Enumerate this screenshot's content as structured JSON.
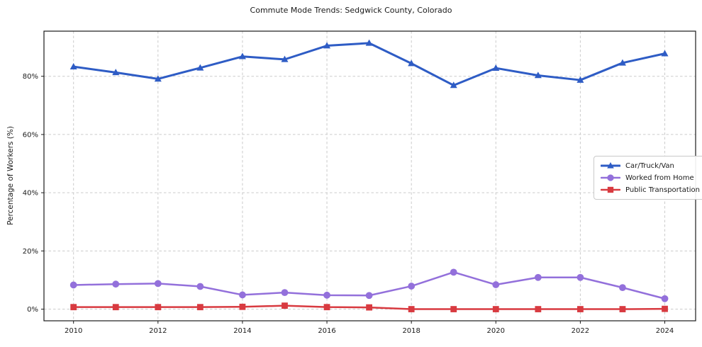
{
  "chart_data": {
    "type": "line",
    "title": "Commute Mode Trends: Sedgwick County, Colorado",
    "ylabel": "Percentage of Workers (%)",
    "xlabel": "",
    "x": [
      2010,
      2011,
      2012,
      2013,
      2014,
      2015,
      2016,
      2017,
      2018,
      2019,
      2020,
      2021,
      2022,
      2023,
      2024
    ],
    "series": [
      {
        "name": "Car/Truck/Van",
        "marker": "triangle",
        "color": "#2e5cc5",
        "line_width": 3,
        "values": [
          83.3,
          81.3,
          79.1,
          82.9,
          86.8,
          85.8,
          90.5,
          91.4,
          84.4,
          76.9,
          82.8,
          80.3,
          78.7,
          84.6,
          87.8
        ]
      },
      {
        "name": "Worked from Home",
        "marker": "circle",
        "color": "#9370db",
        "line_width": 2.5,
        "values": [
          8.3,
          8.6,
          8.8,
          7.8,
          4.9,
          5.7,
          4.8,
          4.7,
          7.9,
          12.7,
          8.4,
          10.9,
          10.9,
          7.4,
          3.6
        ]
      },
      {
        "name": "Public Transportation",
        "marker": "square",
        "color": "#d83a40",
        "line_width": 2.5,
        "values": [
          0.7,
          0.7,
          0.7,
          0.7,
          0.8,
          1.2,
          0.7,
          0.6,
          0.0,
          0.0,
          0.0,
          0.0,
          0.0,
          0.0,
          0.1
        ]
      }
    ],
    "xtick_labels": [
      "2010",
      "2012",
      "2014",
      "2016",
      "2018",
      "2020",
      "2022",
      "2024"
    ],
    "xticks": [
      2010,
      2012,
      2014,
      2016,
      2018,
      2020,
      2022,
      2024
    ],
    "ytick_labels": [
      "0%",
      "20%",
      "40%",
      "60%",
      "80%"
    ],
    "yticks": [
      0,
      20,
      40,
      60,
      80
    ],
    "xlim": [
      2009.3,
      2024.73
    ],
    "ylim": [
      -4.0,
      95.5
    ],
    "grid": true,
    "grid_color": "#cbcbcb",
    "legend_position": "center-right",
    "background_color": "#ffffff"
  }
}
